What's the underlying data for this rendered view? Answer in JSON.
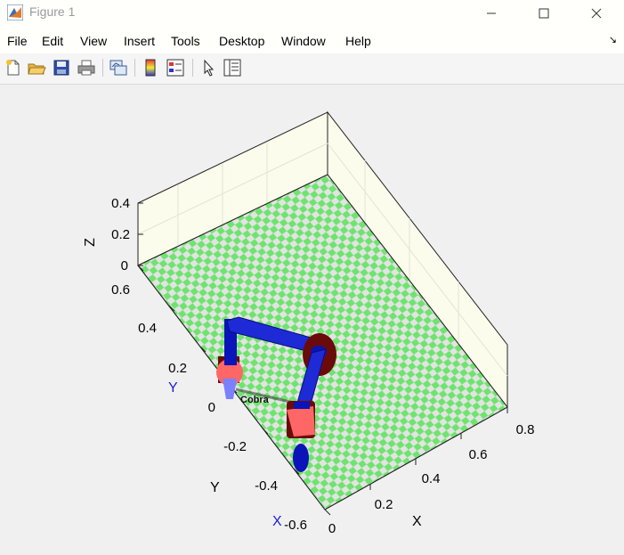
{
  "window": {
    "title": "Figure 1"
  },
  "menu": {
    "items": [
      "File",
      "Edit",
      "View",
      "Insert",
      "Tools",
      "Desktop",
      "Window",
      "Help"
    ]
  },
  "toolbar": {
    "buttons": [
      "new-figure",
      "open-file",
      "save",
      "print",
      "link-plot",
      "insert-colorbar",
      "insert-legend",
      "edit-plot",
      "property-inspector"
    ]
  },
  "axes": {
    "z_label": "Z",
    "z_ticks": [
      "0",
      "0.2",
      "0.4"
    ],
    "y_label": "Y",
    "y_ticks": [
      "-0.6",
      "-0.4",
      "-0.2",
      "0",
      "0.2",
      "0.4",
      "0.6"
    ],
    "x_label": "X",
    "x_ticks": [
      "0",
      "0.2",
      "0.4",
      "0.6",
      "0.8"
    ]
  },
  "robot": {
    "frame_x_label": "X",
    "frame_y_label": "Y",
    "name_fragment": "Cobra"
  },
  "colors": {
    "floor_green": "#6ee46e",
    "floor_grey": "#e3e3e3",
    "link_blue": "#0a14b8",
    "joint_red": "#ff6666",
    "joint_dark": "#6a0a0a",
    "frame_blue": "#1e1ed2"
  }
}
